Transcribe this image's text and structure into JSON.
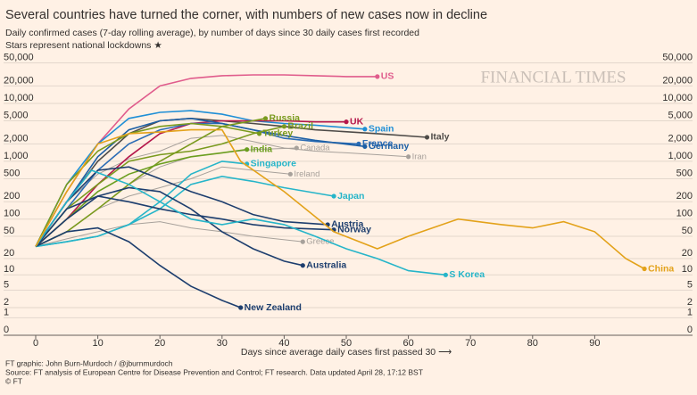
{
  "chart_data": {
    "type": "line",
    "title": "Several countries have turned the corner, with numbers of new cases now in decline",
    "subtitle": [
      "Daily confirmed cases (7-day rolling average), by number of days since 30 daily cases first recorded",
      "Stars represent national lockdowns ★"
    ],
    "watermark": "FINANCIAL TIMES",
    "xlabel": "Days since average daily cases first passed 30 ⟶",
    "footer": [
      "FT graphic: John Burn-Murdoch / @jburnmurdoch",
      "Source: FT analysis of European Centre for Disease Prevention and Control; FT research. Data updated April 28, 17:12 BST",
      "© FT"
    ],
    "yscale": "log1p",
    "grid": true,
    "xlim": [
      0,
      100
    ],
    "xticks": [
      0,
      10,
      20,
      30,
      40,
      50,
      60,
      70,
      80,
      90
    ],
    "ylim": [
      0,
      70000
    ],
    "yticks": [
      0,
      1,
      2,
      5,
      10,
      20,
      50,
      100,
      200,
      500,
      {
        "value": 1000,
        "label": "1,000"
      },
      {
        "value": 2000,
        "label": "2,000"
      },
      {
        "value": 5000,
        "label": "5,000"
      },
      {
        "value": 10000,
        "label": "10,000"
      },
      {
        "value": 20000,
        "label": "20,000"
      },
      {
        "value": 50000,
        "label": "50,000"
      }
    ],
    "series": [
      {
        "name": "Canada",
        "color": "#a7a19b",
        "x": [
          0,
          5,
          10,
          15,
          20,
          25,
          30,
          35,
          42
        ],
        "values": [
          33,
          60,
          150,
          400,
          800,
          1200,
          1400,
          1600,
          1700
        ]
      },
      {
        "name": "Iran",
        "color": "#a7a19b",
        "x": [
          0,
          5,
          10,
          15,
          20,
          25,
          30,
          35,
          40,
          45,
          50,
          55,
          60
        ],
        "values": [
          33,
          200,
          600,
          1100,
          1500,
          2500,
          2800,
          2200,
          1700,
          1500,
          1400,
          1300,
          1200
        ]
      },
      {
        "name": "Ireland",
        "color": "#a7a19b",
        "x": [
          0,
          5,
          10,
          15,
          20,
          25,
          30,
          35,
          41
        ],
        "values": [
          33,
          60,
          150,
          250,
          350,
          500,
          800,
          700,
          600
        ]
      },
      {
        "name": "Greece",
        "color": "#a7a19b",
        "x": [
          0,
          5,
          10,
          15,
          20,
          25,
          30,
          35,
          43
        ],
        "values": [
          33,
          45,
          60,
          80,
          90,
          70,
          60,
          50,
          40
        ]
      },
      {
        "name": "US",
        "color": "#e05c8c",
        "x": [
          0,
          5,
          10,
          15,
          20,
          25,
          30,
          35,
          40,
          45,
          50,
          55
        ],
        "values": [
          33,
          300,
          2000,
          8000,
          20000,
          27000,
          30000,
          31000,
          31000,
          30000,
          29000,
          29000
        ]
      },
      {
        "name": "Italy",
        "color": "#4e4b48",
        "x": [
          0,
          5,
          10,
          15,
          20,
          25,
          30,
          35,
          40,
          45,
          55,
          63
        ],
        "values": [
          33,
          200,
          1000,
          3000,
          5000,
          5500,
          5000,
          4500,
          4000,
          3500,
          3000,
          2600
        ]
      },
      {
        "name": "Spain",
        "color": "#1f8fd6",
        "x": [
          0,
          5,
          10,
          15,
          20,
          25,
          30,
          35,
          40,
          45,
          53
        ],
        "values": [
          33,
          400,
          2000,
          5500,
          7000,
          7500,
          6500,
          5000,
          4500,
          4200,
          3600
        ]
      },
      {
        "name": "UK",
        "color": "#b5174b",
        "x": [
          0,
          5,
          10,
          15,
          20,
          25,
          30,
          35,
          40,
          45,
          50
        ],
        "values": [
          33,
          100,
          400,
          1200,
          3000,
          4500,
          5000,
          5000,
          5000,
          4800,
          4800
        ]
      },
      {
        "name": "France",
        "color": "#2b6cb5",
        "x": [
          0,
          5,
          10,
          15,
          20,
          25,
          30,
          35,
          40,
          45,
          52
        ],
        "values": [
          33,
          150,
          700,
          2000,
          3500,
          4500,
          4500,
          3500,
          2500,
          2200,
          2000
        ]
      },
      {
        "name": "Germany",
        "color": "#1c5fa5",
        "x": [
          0,
          5,
          10,
          15,
          20,
          25,
          30,
          35,
          40,
          45,
          53
        ],
        "values": [
          33,
          200,
          1200,
          3500,
          5000,
          5500,
          4500,
          3500,
          2800,
          2300,
          1800
        ]
      },
      {
        "name": "Russia",
        "color": "#7a9a1e",
        "x": [
          0,
          5,
          10,
          15,
          20,
          25,
          30,
          37
        ],
        "values": [
          33,
          60,
          150,
          400,
          1000,
          2000,
          4000,
          5500
        ]
      },
      {
        "name": "Brazil",
        "color": "#7a9a1e",
        "x": [
          0,
          5,
          10,
          15,
          20,
          25,
          30,
          35,
          40
        ],
        "values": [
          33,
          150,
          400,
          1000,
          1300,
          1500,
          2000,
          3000,
          4000
        ]
      },
      {
        "name": "Turkey",
        "color": "#7a9a1e",
        "x": [
          0,
          5,
          10,
          15,
          20,
          25,
          30,
          36
        ],
        "values": [
          33,
          400,
          1500,
          3000,
          4000,
          4500,
          4000,
          3000
        ]
      },
      {
        "name": "India",
        "color": "#6b9e1f",
        "x": [
          0,
          5,
          10,
          15,
          20,
          25,
          30,
          34
        ],
        "values": [
          33,
          100,
          300,
          600,
          900,
          1200,
          1400,
          1600
        ]
      },
      {
        "name": "Singapore",
        "color": "#26b5c9",
        "x": [
          0,
          5,
          10,
          15,
          20,
          25,
          30,
          34
        ],
        "values": [
          33,
          40,
          50,
          80,
          200,
          600,
          1000,
          900
        ]
      },
      {
        "name": "Japan",
        "color": "#26b5c9",
        "x": [
          0,
          5,
          10,
          15,
          20,
          25,
          30,
          35,
          40,
          48
        ],
        "values": [
          33,
          40,
          50,
          80,
          150,
          400,
          550,
          450,
          350,
          250
        ]
      },
      {
        "name": "Austria",
        "color": "#1d3e6e",
        "x": [
          0,
          5,
          10,
          15,
          20,
          25,
          30,
          35,
          40,
          47
        ],
        "values": [
          33,
          200,
          700,
          800,
          500,
          300,
          200,
          120,
          90,
          80
        ]
      },
      {
        "name": "Norway",
        "color": "#1d3e6e",
        "x": [
          0,
          5,
          10,
          15,
          20,
          25,
          30,
          35,
          40,
          48
        ],
        "values": [
          33,
          150,
          250,
          200,
          150,
          120,
          100,
          80,
          70,
          65
        ]
      },
      {
        "name": "Australia",
        "color": "#1d3e6e",
        "x": [
          0,
          5,
          10,
          15,
          20,
          25,
          30,
          35,
          40,
          43
        ],
        "values": [
          33,
          100,
          250,
          350,
          300,
          150,
          60,
          30,
          18,
          15
        ]
      },
      {
        "name": "New Zealand",
        "color": "#1d3e6e",
        "x": [
          0,
          5,
          10,
          15,
          20,
          25,
          30,
          33
        ],
        "values": [
          33,
          60,
          70,
          40,
          15,
          6,
          3,
          2
        ]
      },
      {
        "name": "S Korea",
        "color": "#26b5c9",
        "x": [
          0,
          5,
          9,
          15,
          20,
          25,
          30,
          35,
          40,
          45,
          50,
          55,
          60,
          66
        ],
        "values": [
          33,
          200,
          700,
          400,
          200,
          100,
          80,
          100,
          80,
          50,
          30,
          20,
          12,
          10
        ]
      },
      {
        "name": "China",
        "color": "#e3a21a",
        "x": [
          0,
          5,
          10,
          15,
          20,
          25,
          30,
          33,
          40,
          48,
          55,
          60,
          68,
          75,
          80,
          85,
          90,
          95,
          98
        ],
        "values": [
          33,
          300,
          2000,
          3000,
          3200,
          3500,
          3500,
          1000,
          300,
          60,
          30,
          50,
          100,
          80,
          70,
          90,
          60,
          20,
          13
        ]
      }
    ]
  }
}
